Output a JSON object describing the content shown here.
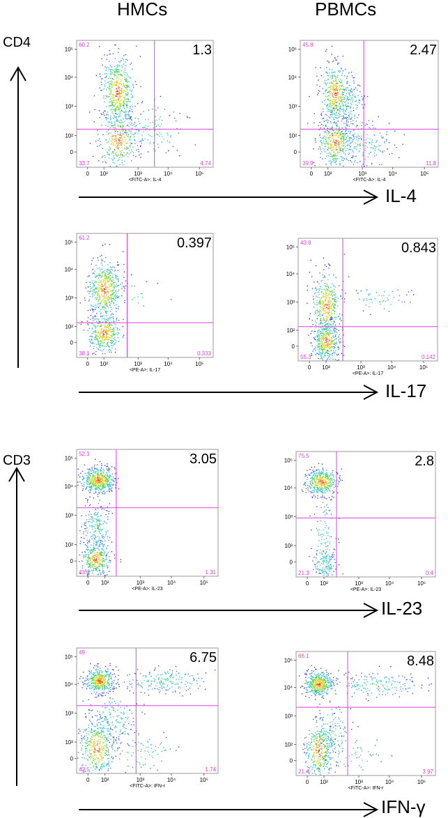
{
  "figure": {
    "column_headers": [
      "HMCs",
      "PBMCs"
    ],
    "sections": [
      {
        "y_label": "CD4"
      },
      {
        "y_label": "CD3"
      }
    ],
    "row_markers": [
      "IL-4",
      "IL-17",
      "IL-23",
      "IFN-γ"
    ]
  },
  "chart_data": [
    {
      "type": "scatter",
      "cells": "HMCs",
      "y_marker": "CD4",
      "x_axis_label": "<FITC-A>: IL-4",
      "x_ticks": [
        "0",
        "10²",
        "10³",
        "10⁴",
        "10⁵"
      ],
      "y_ticks": [
        "10⁵",
        "10⁴",
        "10³",
        "10²",
        "0"
      ],
      "quadrants": {
        "upper_left": "60.2",
        "upper_right": "1.3",
        "lower_left": "33.7",
        "lower_right": "4.74"
      }
    },
    {
      "type": "scatter",
      "cells": "PBMCs",
      "y_marker": "CD4",
      "x_axis_label": "<FITC-A>: IL-4",
      "x_ticks": [
        "0",
        "10²",
        "10³",
        "10⁴",
        "10⁵"
      ],
      "y_ticks": [
        "10⁵",
        "10⁴",
        "10³",
        "10²",
        "0"
      ],
      "quadrants": {
        "upper_left": "45.8",
        "upper_right": "2.47",
        "lower_left": "39.9",
        "lower_right": "11.8"
      }
    },
    {
      "type": "scatter",
      "cells": "HMCs",
      "y_marker": "CD4",
      "x_axis_label": "<PE-A>: IL-17",
      "x_ticks": [
        "0",
        "10²",
        "10³",
        "10⁴",
        "10⁵"
      ],
      "y_ticks": [
        "10⁵",
        "10⁴",
        "10³",
        "10²",
        "0"
      ],
      "quadrants": {
        "upper_left": "61.2",
        "upper_right": "0.397",
        "lower_left": "38.1",
        "lower_right": "0.333"
      }
    },
    {
      "type": "scatter",
      "cells": "PBMCs",
      "y_marker": "CD4",
      "x_axis_label": "<PE-A>: IL-17",
      "x_ticks": [
        "0",
        "10²",
        "10³",
        "10⁴",
        "10⁵"
      ],
      "y_ticks": [
        "10⁵",
        "10⁴",
        "10³",
        "10²",
        "0"
      ],
      "quadrants": {
        "upper_left": "43.8",
        "upper_right": "0.843",
        "lower_left": "55.3",
        "lower_right": "0.142"
      }
    },
    {
      "type": "scatter",
      "cells": "HMCs",
      "y_marker": "CD3",
      "x_axis_label": "<PE-A>: IL-23",
      "x_ticks": [
        "0",
        "10²",
        "10³",
        "10⁴",
        "10⁵"
      ],
      "y_ticks": [
        "10⁵",
        "10⁴",
        "10³",
        "10²",
        "0"
      ],
      "quadrants": {
        "upper_left": "52.1",
        "upper_right": "3.05",
        "lower_left": "43.6",
        "lower_right": "1.31"
      }
    },
    {
      "type": "scatter",
      "cells": "PBMCs",
      "y_marker": "CD3",
      "x_axis_label": "<PE-A>: IL-23",
      "x_ticks": [
        "0",
        "10²",
        "10³",
        "10⁴",
        "10⁵"
      ],
      "y_ticks": [
        "10⁵",
        "10⁴",
        "10³",
        "10²",
        "0"
      ],
      "quadrants": {
        "upper_left": "75.5",
        "upper_right": "2.8",
        "lower_left": "21.3",
        "lower_right": "0.4"
      }
    },
    {
      "type": "scatter",
      "cells": "HMCs",
      "y_marker": "CD3",
      "x_axis_label": "<FITC-A>: IFN-r",
      "x_ticks": [
        "0",
        "10²",
        "10³",
        "10⁴",
        "10⁵"
      ],
      "y_ticks": [
        "10⁵",
        "10⁴",
        "10³",
        "10²",
        "0"
      ],
      "quadrants": {
        "upper_left": "49",
        "upper_right": "6.75",
        "lower_left": "42.5",
        "lower_right": "1.74"
      }
    },
    {
      "type": "scatter",
      "cells": "PBMCs",
      "y_marker": "CD3",
      "x_axis_label": "<FITC-A>: IFN-r",
      "x_ticks": [
        "0",
        "10²",
        "10³",
        "10⁴",
        "10⁵"
      ],
      "y_ticks": [
        "10⁵",
        "10⁴",
        "10³",
        "10²",
        "0"
      ],
      "quadrants": {
        "upper_left": "66.1",
        "upper_right": "8.48",
        "lower_left": "21.4",
        "lower_right": "3.97"
      }
    }
  ]
}
